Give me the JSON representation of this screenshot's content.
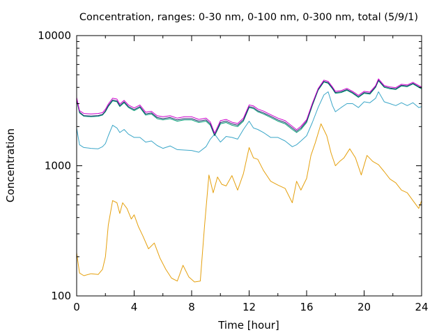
{
  "chart_data": {
    "type": "line",
    "title": "Concentration, ranges: 0-30 nm, 0-100 nm, 0-300 nm, total (5/9/1)",
    "xlabel": "Time [hour]",
    "ylabel": "Concentration",
    "xlim": [
      0,
      24
    ],
    "ylim": [
      100,
      10000
    ],
    "yscale": "log",
    "xticks": [
      0,
      4,
      8,
      12,
      16,
      20,
      24
    ],
    "xtick_labels": [
      "0",
      "4",
      "8",
      "12",
      "16",
      "20",
      "24"
    ],
    "yticks": [
      100,
      1000,
      10000
    ],
    "ytick_labels": [
      "100",
      "1000",
      "10000"
    ],
    "grid": false,
    "legend": "none",
    "series": [
      {
        "color": "#e5a00d",
        "x": [
          0,
          0.2,
          0.5,
          1.0,
          1.5,
          1.8,
          2.0,
          2.2,
          2.5,
          2.8,
          3.0,
          3.2,
          3.5,
          3.8,
          4.0,
          4.3,
          4.6,
          5.0,
          5.4,
          5.8,
          6.2,
          6.6,
          7.0,
          7.4,
          7.8,
          8.2,
          8.6,
          8.9,
          9.2,
          9.5,
          9.8,
          10.1,
          10.4,
          10.8,
          11.2,
          11.6,
          12.0,
          12.3,
          12.6,
          13.0,
          13.5,
          14.0,
          14.5,
          15.0,
          15.3,
          15.6,
          16.0,
          16.3,
          16.6,
          17.0,
          17.4,
          17.7,
          18.0,
          18.3,
          18.6,
          19.0,
          19.4,
          19.8,
          20.2,
          20.6,
          21.0,
          21.4,
          21.8,
          22.2,
          22.6,
          23.0,
          23.4,
          23.8,
          24.0
        ],
        "values": [
          215,
          150,
          143,
          148,
          146,
          160,
          200,
          350,
          540,
          520,
          430,
          520,
          470,
          390,
          420,
          340,
          290,
          230,
          255,
          195,
          160,
          137,
          130,
          172,
          140,
          128,
          130,
          350,
          850,
          620,
          820,
          720,
          700,
          840,
          650,
          870,
          1380,
          1150,
          1120,
          920,
          760,
          710,
          670,
          520,
          760,
          650,
          800,
          1200,
          1500,
          2100,
          1700,
          1250,
          1000,
          1080,
          1150,
          1350,
          1150,
          850,
          1200,
          1080,
          1020,
          900,
          790,
          740,
          650,
          620,
          540,
          470,
          540
        ]
      },
      {
        "color": "#3aa6c8",
        "x": [
          0,
          0.2,
          0.5,
          1.0,
          1.5,
          1.8,
          2.0,
          2.2,
          2.5,
          2.8,
          3.0,
          3.3,
          3.6,
          4.0,
          4.4,
          4.8,
          5.2,
          5.6,
          6.0,
          6.5,
          7.0,
          7.5,
          8.0,
          8.5,
          9.0,
          9.3,
          9.6,
          10.0,
          10.4,
          10.8,
          11.2,
          11.6,
          12.0,
          12.3,
          12.6,
          13.0,
          13.5,
          14.0,
          14.5,
          15.0,
          15.3,
          15.6,
          16.0,
          16.4,
          16.8,
          17.2,
          17.5,
          17.8,
          18.0,
          18.4,
          18.8,
          19.2,
          19.6,
          20.0,
          20.4,
          20.8,
          21.0,
          21.4,
          21.8,
          22.2,
          22.6,
          23.0,
          23.4,
          23.8,
          24.0
        ],
        "values": [
          1950,
          1450,
          1380,
          1360,
          1350,
          1400,
          1480,
          1700,
          2050,
          1950,
          1800,
          1900,
          1750,
          1650,
          1650,
          1520,
          1550,
          1430,
          1360,
          1420,
          1330,
          1320,
          1310,
          1270,
          1400,
          1600,
          1750,
          1520,
          1680,
          1650,
          1600,
          1900,
          2200,
          1950,
          1900,
          1800,
          1650,
          1650,
          1550,
          1400,
          1450,
          1550,
          1700,
          2150,
          2800,
          3500,
          3700,
          2900,
          2600,
          2800,
          3000,
          3000,
          2800,
          3100,
          3050,
          3300,
          3700,
          3100,
          3000,
          2900,
          3050,
          2900,
          3050,
          2800,
          2850
        ]
      },
      {
        "color": "#009e73",
        "x": [
          0,
          0.2,
          0.5,
          1.0,
          1.5,
          1.8,
          2.0,
          2.2,
          2.5,
          2.8,
          3.0,
          3.3,
          3.6,
          4.0,
          4.4,
          4.8,
          5.2,
          5.6,
          6.0,
          6.5,
          7.0,
          7.5,
          8.0,
          8.5,
          9.0,
          9.3,
          9.6,
          10.0,
          10.4,
          10.8,
          11.2,
          11.6,
          12.0,
          12.3,
          12.6,
          13.0,
          13.5,
          14.0,
          14.5,
          15.0,
          15.3,
          15.6,
          16.0,
          16.4,
          16.8,
          17.2,
          17.5,
          17.8,
          18.0,
          18.4,
          18.8,
          19.2,
          19.6,
          20.0,
          20.4,
          20.8,
          21.0,
          21.4,
          21.8,
          22.2,
          22.6,
          23.0,
          23.4,
          23.8,
          24.0
        ],
        "values": [
          3200,
          2550,
          2400,
          2380,
          2400,
          2450,
          2600,
          2850,
          3150,
          3100,
          2850,
          3050,
          2800,
          2650,
          2800,
          2450,
          2500,
          2300,
          2250,
          2300,
          2200,
          2250,
          2250,
          2150,
          2200,
          2050,
          1700,
          2100,
          2150,
          2050,
          2000,
          2200,
          2800,
          2750,
          2600,
          2500,
          2350,
          2200,
          2100,
          1900,
          1800,
          1900,
          2150,
          2900,
          3800,
          4400,
          4300,
          3900,
          3600,
          3650,
          3800,
          3600,
          3350,
          3600,
          3550,
          4000,
          4500,
          4000,
          3900,
          3850,
          4100,
          4050,
          4250,
          4000,
          3900
        ]
      },
      {
        "color": "#1f2a6b",
        "x": [
          0,
          0.2,
          0.5,
          1.0,
          1.5,
          1.8,
          2.0,
          2.2,
          2.5,
          2.8,
          3.0,
          3.3,
          3.6,
          4.0,
          4.4,
          4.8,
          5.2,
          5.6,
          6.0,
          6.5,
          7.0,
          7.5,
          8.0,
          8.5,
          9.0,
          9.3,
          9.6,
          10.0,
          10.4,
          10.8,
          11.2,
          11.6,
          12.0,
          12.3,
          12.6,
          13.0,
          13.5,
          14.0,
          14.5,
          15.0,
          15.3,
          15.6,
          16.0,
          16.4,
          16.8,
          17.2,
          17.5,
          17.8,
          18.0,
          18.4,
          18.8,
          19.2,
          19.6,
          20.0,
          20.4,
          20.8,
          21.0,
          21.4,
          21.8,
          22.2,
          22.6,
          23.0,
          23.4,
          23.8,
          24.0
        ],
        "values": [
          3250,
          2580,
          2430,
          2410,
          2430,
          2480,
          2640,
          2900,
          3200,
          3150,
          2900,
          3100,
          2850,
          2700,
          2850,
          2500,
          2550,
          2350,
          2300,
          2350,
          2250,
          2300,
          2300,
          2200,
          2250,
          2100,
          1720,
          2150,
          2200,
          2100,
          2050,
          2250,
          2850,
          2800,
          2650,
          2550,
          2400,
          2250,
          2150,
          1950,
          1840,
          1950,
          2200,
          2950,
          3850,
          4450,
          4350,
          3950,
          3650,
          3700,
          3850,
          3650,
          3400,
          3650,
          3600,
          4050,
          4550,
          4050,
          3950,
          3900,
          4150,
          4100,
          4300,
          4050,
          3950
        ]
      },
      {
        "color": "#cc00cc",
        "x": [
          0,
          0.2,
          0.5,
          1.0,
          1.5,
          1.8,
          2.0,
          2.2,
          2.5,
          2.8,
          3.0,
          3.3,
          3.6,
          4.0,
          4.4,
          4.8,
          5.2,
          5.6,
          6.0,
          6.5,
          7.0,
          7.5,
          8.0,
          8.5,
          9.0,
          9.3,
          9.6,
          10.0,
          10.4,
          10.8,
          11.2,
          11.6,
          12.0,
          12.3,
          12.6,
          13.0,
          13.5,
          14.0,
          14.5,
          15.0,
          15.3,
          15.6,
          16.0,
          16.4,
          16.8,
          17.2,
          17.5,
          17.8,
          18.0,
          18.4,
          18.8,
          19.2,
          19.6,
          20.0,
          20.4,
          20.8,
          21.0,
          21.4,
          21.8,
          22.2,
          22.6,
          23.0,
          23.4,
          23.8,
          24.0
        ],
        "values": [
          3350,
          2650,
          2520,
          2500,
          2520,
          2560,
          2720,
          2980,
          3300,
          3250,
          2980,
          3180,
          2930,
          2780,
          2930,
          2580,
          2620,
          2420,
          2380,
          2420,
          2320,
          2380,
          2380,
          2270,
          2320,
          2170,
          1780,
          2220,
          2270,
          2160,
          2110,
          2320,
          2930,
          2880,
          2730,
          2630,
          2470,
          2320,
          2220,
          2010,
          1890,
          2010,
          2260,
          3020,
          3920,
          4550,
          4450,
          4030,
          3730,
          3780,
          3930,
          3730,
          3480,
          3730,
          3680,
          4130,
          4650,
          4130,
          4030,
          3980,
          4230,
          4180,
          4380,
          4130,
          4030
        ]
      }
    ]
  }
}
